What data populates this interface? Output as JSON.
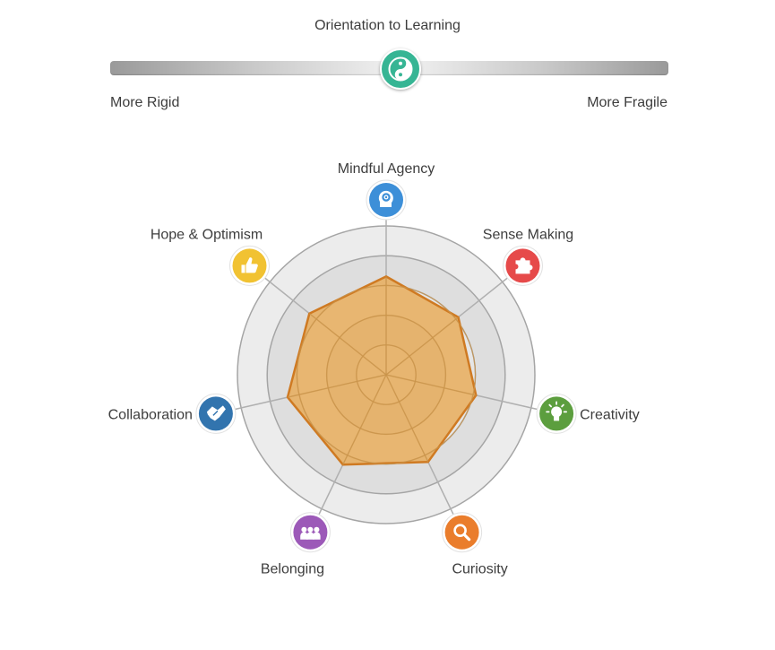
{
  "slider": {
    "title": "Orientation to Learning",
    "left_label": "More Rigid",
    "right_label": "More Fragile",
    "value": 0.52,
    "knob_color": "#36b594",
    "knob_icon": "yin-yang-icon"
  },
  "chart_data": {
    "type": "radar",
    "max": 1.0,
    "rings": [
      0.2,
      0.4,
      0.6,
      0.8,
      1.0
    ],
    "fill_color": "#e8a850",
    "stroke_color": "#cf7a22",
    "axes": [
      {
        "key": "mindful-agency",
        "label": "Mindful Agency",
        "color": "#3d8fd8",
        "icon": "gear-head-icon",
        "value": 0.66
      },
      {
        "key": "sense-making",
        "label": "Sense Making",
        "color": "#e64a4a",
        "icon": "puzzle-icon",
        "value": 0.62
      },
      {
        "key": "creativity",
        "label": "Creativity",
        "color": "#5c9e3e",
        "icon": "lightbulb-icon",
        "value": 0.62
      },
      {
        "key": "curiosity",
        "label": "Curiosity",
        "color": "#ea7d2c",
        "icon": "magnifier-icon",
        "value": 0.65
      },
      {
        "key": "belonging",
        "label": "Belonging",
        "color": "#9c59b8",
        "icon": "group-icon",
        "value": 0.67
      },
      {
        "key": "collaboration",
        "label": "Collaboration",
        "color": "#3274ae",
        "icon": "handshake-icon",
        "value": 0.68
      },
      {
        "key": "hope-optimism",
        "label": "Hope & Optimism",
        "color": "#f1c232",
        "icon": "thumbs-up-icon",
        "value": 0.66
      }
    ]
  }
}
